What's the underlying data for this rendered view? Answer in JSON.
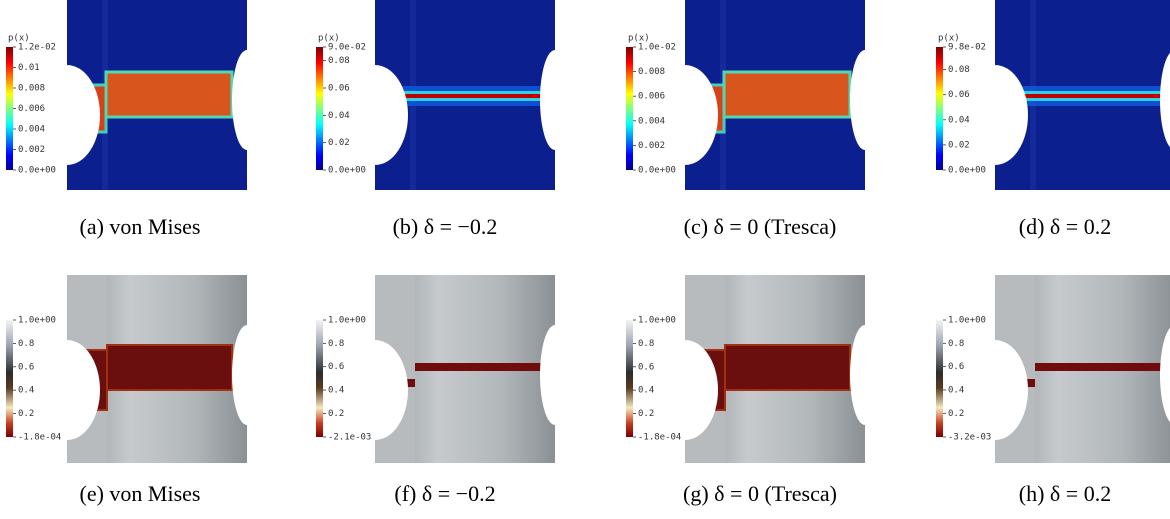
{
  "panels": [
    {
      "caption": "(a) von Mises",
      "colorbar": {
        "title": "p(x)",
        "ticks": [
          {
            "value": 0.012,
            "label": "1.2e-02"
          },
          0.01,
          0.008,
          0.006,
          0.004,
          0.002,
          {
            "value": 0,
            "label": "0.0e+00"
          }
        ]
      }
    },
    {
      "caption": "(b) δ = −0.2",
      "colorbar": {
        "title": "p(x)",
        "ticks": [
          {
            "value": 0.09,
            "label": "9.0e-02"
          },
          0.08,
          0.06,
          0.04,
          0.02,
          {
            "value": 0,
            "label": "0.0e+00"
          }
        ]
      }
    },
    {
      "caption": "(c) δ = 0 (Tresca)",
      "colorbar": {
        "title": "p(x)",
        "ticks": [
          {
            "value": 0.01,
            "label": "1.0e-02"
          },
          0.008,
          0.006,
          0.004,
          0.002,
          {
            "value": 0,
            "label": "0.0e+00"
          }
        ]
      }
    },
    {
      "caption": "(d) δ = 0.2",
      "colorbar": {
        "title": "p(x)",
        "ticks": [
          {
            "value": 0.098,
            "label": "9.8e-02"
          },
          0.08,
          0.06,
          0.04,
          0.02,
          {
            "value": 0,
            "label": "0.0e+00"
          }
        ]
      }
    },
    {
      "caption": "(e) von Mises",
      "colorbar": {
        "ticks": [
          {
            "value": 1,
            "label": "1.0e+00"
          },
          0.8,
          0.6,
          0.4,
          0.2,
          {
            "value": -0.00018,
            "label": "-1.8e-04"
          }
        ]
      }
    },
    {
      "caption": "(f) δ = −0.2",
      "colorbar": {
        "ticks": [
          {
            "value": 1,
            "label": "1.0e+00"
          },
          0.8,
          0.6,
          0.4,
          0.2,
          {
            "value": -0.0021,
            "label": "-2.1e-03"
          }
        ]
      }
    },
    {
      "caption": "(g) δ = 0 (Tresca)",
      "colorbar": {
        "ticks": [
          {
            "value": 1,
            "label": "1.0e+00"
          },
          0.8,
          0.6,
          0.4,
          0.2,
          {
            "value": -0.00018,
            "label": "-1.8e-04"
          }
        ]
      }
    },
    {
      "caption": "(h) δ = 0.2",
      "colorbar": {
        "ticks": [
          {
            "value": 1,
            "label": "1.0e+00"
          },
          0.8,
          0.6,
          0.4,
          0.2,
          {
            "value": -0.0032,
            "label": "-3.2e-03"
          }
        ]
      }
    }
  ]
}
